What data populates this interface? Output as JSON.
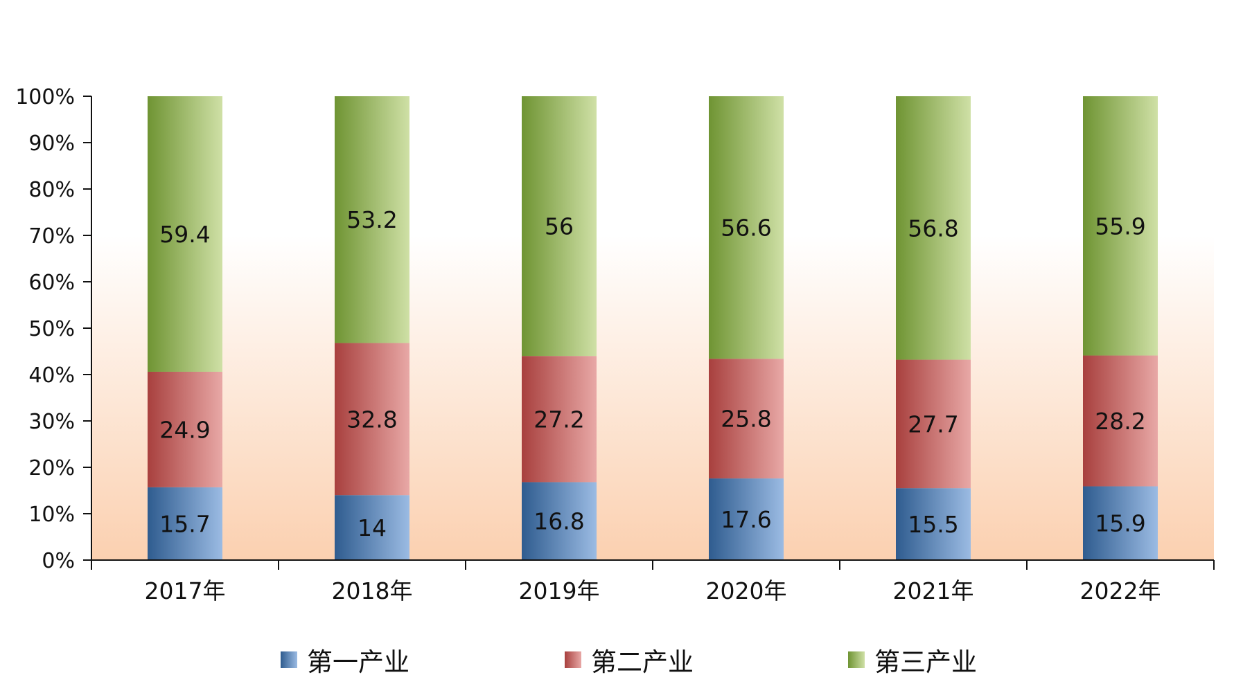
{
  "chart_data": {
    "type": "bar",
    "stacked": true,
    "normalized": true,
    "categories": [
      "2017年",
      "2018年",
      "2019年",
      "2020年",
      "2021年",
      "2022年"
    ],
    "series": [
      {
        "name": "第一产业",
        "values": [
          15.7,
          14,
          16.8,
          17.6,
          15.5,
          15.9
        ],
        "labels": [
          "15.7",
          "14",
          "16.8",
          "17.6",
          "15.5",
          "15.9"
        ],
        "color_dark": "#2f5c8f",
        "color_light": "#9bbbe3"
      },
      {
        "name": "第二产业",
        "values": [
          24.9,
          32.8,
          27.2,
          25.8,
          27.7,
          28.2
        ],
        "labels": [
          "24.9",
          "32.8",
          "27.2",
          "25.8",
          "27.7",
          "28.2"
        ],
        "color_dark": "#a8403e",
        "color_light": "#e8a8a6"
      },
      {
        "name": "第三产业",
        "values": [
          59.4,
          53.2,
          56,
          56.6,
          56.8,
          55.9
        ],
        "labels": [
          "59.4",
          "53.2",
          "56",
          "56.6",
          "56.8",
          "55.9"
        ],
        "color_dark": "#6f9433",
        "color_light": "#cfe0a6"
      }
    ],
    "yticks": [
      "0%",
      "10%",
      "20%",
      "30%",
      "40%",
      "50%",
      "60%",
      "70%",
      "80%",
      "90%",
      "100%"
    ],
    "ylim": [
      0,
      100
    ],
    "grid": false,
    "legend_position": "bottom",
    "background_gradient": [
      "#ffffff",
      "#fbd0b0"
    ]
  }
}
